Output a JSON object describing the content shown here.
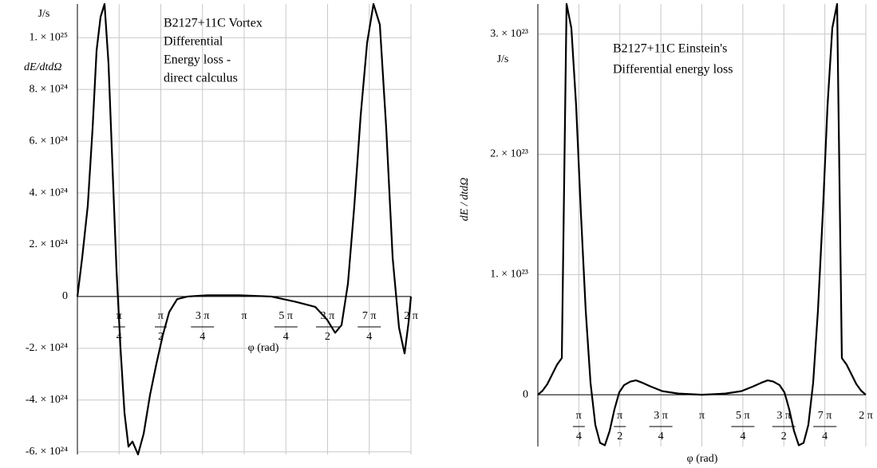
{
  "chart_data": [
    {
      "type": "line",
      "annotation": [
        "B2127+11C Vortex",
        "Differential",
        "Energy loss  -",
        "direct calculus"
      ],
      "y_unit": "J/s",
      "ylabel": "dE/dtdΩ",
      "xlabel": "φ (rad)",
      "xlim": [
        0,
        6.2832
      ],
      "ylim": [
        -6.1e+24,
        1.13e+25
      ],
      "xticks": [
        {
          "value": 0.7854,
          "label": "π/4"
        },
        {
          "value": 1.5708,
          "label": "π/2"
        },
        {
          "value": 2.3562,
          "label": "3 π/4"
        },
        {
          "value": 3.1416,
          "label": "π"
        },
        {
          "value": 3.927,
          "label": "5 π/4"
        },
        {
          "value": 4.7124,
          "label": "3 π/2"
        },
        {
          "value": 5.4978,
          "label": "7 π/4"
        },
        {
          "value": 6.2832,
          "label": "2 π"
        }
      ],
      "yticks": [
        {
          "value": -6e+24,
          "label": "-6. × 10²⁴"
        },
        {
          "value": -4e+24,
          "label": "-4. × 10²⁴"
        },
        {
          "value": -2e+24,
          "label": "-2. × 10²⁴"
        },
        0,
        {
          "value": 2e+24,
          "label": "2. × 10²⁴"
        },
        {
          "value": 4e+24,
          "label": "4. × 10²⁴"
        },
        {
          "value": 6e+24,
          "label": "6. × 10²⁴"
        },
        {
          "value": 8e+24,
          "label": "8. × 10²⁴"
        },
        {
          "value": 1e+25,
          "label": "1. × 10²⁵"
        }
      ],
      "grid": true,
      "color": "#000000",
      "x": [
        0,
        0.09,
        0.195,
        0.286,
        0.361,
        0.436,
        0.511,
        0.586,
        0.661,
        0.737,
        0.812,
        0.887,
        0.962,
        1.037,
        1.142,
        1.248,
        1.368,
        1.488,
        1.608,
        1.729,
        1.879,
        2.074,
        2.45,
        3.051,
        3.653,
        4.104,
        4.48,
        4.705,
        4.855,
        4.976,
        5.096,
        5.216,
        5.336,
        5.457,
        5.577,
        5.697,
        5.817,
        5.938,
        6.058,
        6.163,
        6.238,
        6.283
      ],
      "values": [
        0,
        1.5e+24,
        3.5e+24,
        6.5e+24,
        9.5e+24,
        1.08e+25,
        1.13e+25,
        9e+24,
        5e+24,
        1e+24,
        -2e+24,
        -4.5e+24,
        -5.8e+24,
        -5.6e+24,
        -6.1e+24,
        -5.3e+24,
        -3.8e+24,
        -2.6e+24,
        -1.5e+24,
        -6e+23,
        -1e+23,
        0,
        5e+22,
        5e+22,
        0,
        -2e+23,
        -4e+23,
        -9e+23,
        -1.4e+24,
        -1.1e+24,
        5e+23,
        3.5e+24,
        7e+24,
        9.8e+24,
        1.13e+25,
        1.05e+25,
        6.5e+24,
        1.5e+24,
        -1.2e+24,
        -2.2e+24,
        -1e+24,
        0
      ]
    },
    {
      "type": "line",
      "annotation": [
        "B2127+11C Einstein's",
        "Differential energy loss"
      ],
      "y_unit": "J/s",
      "ylabel": "dE / dtdΩ",
      "xlabel": "φ (rad)",
      "xlim": [
        0,
        6.2832
      ],
      "ylim": [
        -4.3e+22,
        3.25e+23
      ],
      "xticks": [
        {
          "value": 0.7854,
          "label": "π/4"
        },
        {
          "value": 1.5708,
          "label": "π/2"
        },
        {
          "value": 2.3562,
          "label": "3 π/4"
        },
        {
          "value": 3.1416,
          "label": "π"
        },
        {
          "value": 3.927,
          "label": "5 π/4"
        },
        {
          "value": 4.7124,
          "label": "3 π/2"
        },
        {
          "value": 5.4978,
          "label": "7 π/4"
        },
        {
          "value": 6.2832,
          "label": "2 π"
        }
      ],
      "yticks": [
        0,
        {
          "value": 1e+23,
          "label": "1. × 10²³"
        },
        {
          "value": 2e+23,
          "label": "2. × 10²³"
        },
        {
          "value": 3e+23,
          "label": "3. × 10²³"
        }
      ],
      "grid": true,
      "color": "#000000",
      "x": [
        0,
        0.092,
        0.183,
        0.275,
        0.367,
        0.459,
        0.55,
        0.642,
        0.734,
        0.826,
        0.917,
        1.009,
        1.101,
        1.192,
        1.284,
        1.376,
        1.468,
        1.559,
        1.651,
        1.773,
        1.88,
        2.003,
        2.156,
        2.385,
        2.691,
        3.142,
        3.592,
        3.898,
        4.127,
        4.28,
        4.403,
        4.51,
        4.632,
        4.724,
        4.815,
        4.907,
        4.999,
        5.091,
        5.182,
        5.274,
        5.366,
        5.458,
        5.549,
        5.641,
        5.733,
        5.824,
        5.916,
        6.008,
        6.1,
        6.191,
        6.283
      ],
      "values": [
        0,
        3.5e+21,
        9e+21,
        1.7e+22,
        2.5e+22,
        3.05e+22,
        3.25e+23,
        3.05e+23,
        2.4e+23,
        1.5e+23,
        7e+22,
        1e+22,
        -2.5e+22,
        -4e+22,
        -4.2e+22,
        -3e+22,
        -1.2e+22,
        2e+21,
        8e+21,
        1.1e+22,
        1.2e+22,
        1e+22,
        7e+21,
        3e+21,
        1e+21,
        0,
        1e+21,
        3e+21,
        7e+21,
        1e+22,
        1.2e+22,
        1.1e+22,
        8e+21,
        2e+21,
        -1.2e+22,
        -3e+22,
        -4.2e+22,
        -4e+22,
        -2.5e+22,
        1e+22,
        7e+22,
        1.5e+23,
        2.4e+23,
        3.05e+23,
        3.25e+23,
        3.05e+22,
        2.5e+22,
        1.7e+22,
        9e+21,
        3.5e+21,
        0
      ]
    }
  ]
}
